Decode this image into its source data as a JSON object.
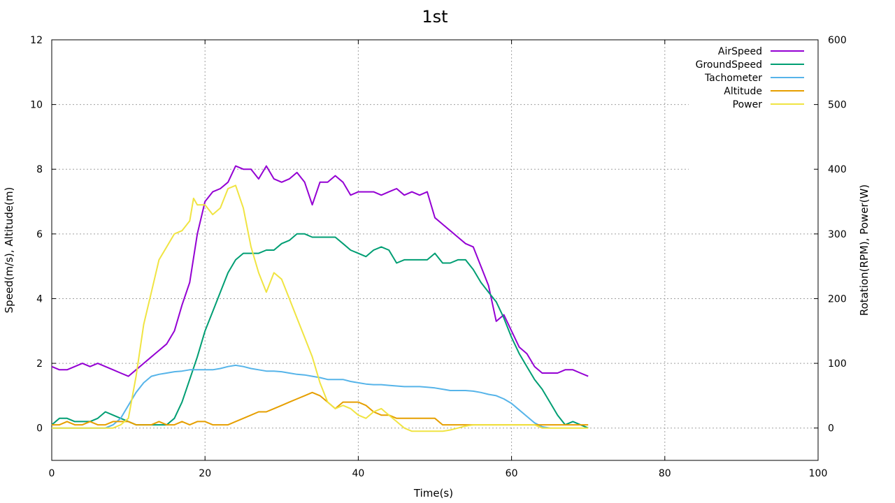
{
  "chart_data": {
    "type": "line",
    "title": "1st",
    "xlabel": "Time(s)",
    "ylabel": "Speed(m/s), Altitude(m)",
    "y2label": "Rotation(RPM), Power(W)",
    "xlim": [
      0,
      100
    ],
    "ylim": [
      -1,
      12
    ],
    "y2lim": [
      -50,
      600
    ],
    "xticks": [
      0,
      20,
      40,
      60,
      80,
      100
    ],
    "yticks": [
      0,
      2,
      4,
      6,
      8,
      10,
      12
    ],
    "y2ticks": [
      0,
      100,
      200,
      300,
      400,
      500,
      600
    ],
    "grid": true,
    "legend_position": "top-right",
    "series": [
      {
        "name": "AirSpeed",
        "axis": "y1",
        "color": "#9400d3",
        "x": [
          0,
          1,
          2,
          3,
          4,
          5,
          6,
          7,
          8,
          9,
          10,
          11,
          12,
          13,
          14,
          15,
          16,
          17,
          18,
          19,
          20,
          21,
          22,
          23,
          24,
          25,
          26,
          27,
          28,
          29,
          30,
          31,
          32,
          33,
          34,
          35,
          36,
          37,
          38,
          39,
          40,
          41,
          42,
          43,
          44,
          45,
          46,
          47,
          48,
          49,
          50,
          51,
          52,
          53,
          54,
          55,
          56,
          57,
          58,
          59,
          60,
          61,
          62,
          63,
          64,
          65,
          66,
          67,
          68,
          69,
          70
        ],
        "values": [
          1.9,
          1.8,
          1.8,
          1.9,
          2.0,
          1.9,
          2.0,
          1.9,
          1.8,
          1.7,
          1.6,
          1.8,
          2.0,
          2.2,
          2.4,
          2.6,
          3.0,
          3.8,
          4.5,
          6.0,
          7.0,
          7.3,
          7.4,
          7.6,
          8.1,
          8.0,
          8.0,
          7.7,
          8.1,
          7.7,
          7.6,
          7.7,
          7.9,
          7.6,
          6.9,
          7.6,
          7.6,
          7.8,
          7.6,
          7.2,
          7.3,
          7.3,
          7.3,
          7.2,
          7.3,
          7.4,
          7.2,
          7.3,
          7.2,
          7.3,
          6.5,
          6.3,
          6.1,
          5.9,
          5.7,
          5.6,
          5.0,
          4.4,
          3.3,
          3.5,
          3.0,
          2.5,
          2.3,
          1.9,
          1.7,
          1.7,
          1.7,
          1.8,
          1.8,
          1.7,
          1.6
        ]
      },
      {
        "name": "GroundSpeed",
        "axis": "y1",
        "color": "#009e73",
        "x": [
          0,
          1,
          2,
          3,
          4,
          5,
          6,
          7,
          8,
          9,
          10,
          11,
          12,
          13,
          14,
          15,
          16,
          17,
          18,
          19,
          20,
          21,
          22,
          23,
          24,
          25,
          26,
          27,
          28,
          29,
          30,
          31,
          32,
          33,
          34,
          35,
          36,
          37,
          38,
          39,
          40,
          41,
          42,
          43,
          44,
          45,
          46,
          47,
          48,
          49,
          50,
          51,
          52,
          53,
          54,
          55,
          56,
          57,
          58,
          59,
          60,
          61,
          62,
          63,
          64,
          65,
          66,
          67,
          68,
          69,
          70
        ],
        "values": [
          0.1,
          0.3,
          0.3,
          0.2,
          0.2,
          0.2,
          0.3,
          0.5,
          0.4,
          0.3,
          0.2,
          0.1,
          0.1,
          0.1,
          0.1,
          0.1,
          0.3,
          0.8,
          1.5,
          2.2,
          3.0,
          3.6,
          4.2,
          4.8,
          5.2,
          5.4,
          5.4,
          5.4,
          5.5,
          5.5,
          5.7,
          5.8,
          6.0,
          6.0,
          5.9,
          5.9,
          5.9,
          5.9,
          5.7,
          5.5,
          5.4,
          5.3,
          5.5,
          5.6,
          5.5,
          5.1,
          5.2,
          5.2,
          5.2,
          5.2,
          5.4,
          5.1,
          5.1,
          5.2,
          5.2,
          4.9,
          4.5,
          4.2,
          3.9,
          3.4,
          2.8,
          2.3,
          1.9,
          1.5,
          1.2,
          0.8,
          0.4,
          0.1,
          0.2,
          0.1,
          0.0
        ]
      },
      {
        "name": "Tachometer",
        "axis": "y2",
        "color": "#56b4e9",
        "x": [
          0,
          7,
          8,
          9,
          10,
          11,
          12,
          13,
          14,
          15,
          16,
          17,
          18,
          19,
          20,
          21,
          22,
          23,
          24,
          25,
          26,
          27,
          28,
          29,
          30,
          31,
          32,
          33,
          34,
          35,
          36,
          37,
          38,
          39,
          40,
          41,
          42,
          43,
          44,
          45,
          46,
          47,
          48,
          49,
          50,
          51,
          52,
          53,
          54,
          55,
          56,
          57,
          58,
          59,
          60,
          61,
          62,
          63,
          64,
          65
        ],
        "values": [
          0,
          0,
          5,
          15,
          35,
          55,
          70,
          80,
          83,
          85,
          87,
          88,
          90,
          90,
          90,
          90,
          92,
          95,
          97,
          95,
          92,
          90,
          88,
          88,
          87,
          85,
          83,
          82,
          80,
          78,
          75,
          75,
          75,
          72,
          70,
          68,
          67,
          67,
          66,
          65,
          64,
          64,
          64,
          63,
          62,
          60,
          58,
          58,
          58,
          57,
          55,
          52,
          50,
          45,
          38,
          28,
          18,
          8,
          2,
          0
        ]
      },
      {
        "name": "Altitude",
        "axis": "y1",
        "color": "#e69f00",
        "x": [
          0,
          1,
          2,
          3,
          4,
          5,
          6,
          7,
          8,
          9,
          10,
          11,
          12,
          13,
          14,
          15,
          16,
          17,
          18,
          19,
          20,
          21,
          22,
          23,
          24,
          25,
          26,
          27,
          28,
          29,
          30,
          31,
          32,
          33,
          34,
          35,
          36,
          37,
          38,
          39,
          40,
          41,
          42,
          43,
          44,
          45,
          46,
          47,
          48,
          49,
          50,
          51,
          52,
          53,
          54,
          55,
          56,
          57,
          58,
          59,
          60,
          61,
          62,
          63,
          64,
          65,
          66,
          67,
          68,
          69,
          70
        ],
        "values": [
          0.1,
          0.1,
          0.2,
          0.1,
          0.1,
          0.2,
          0.1,
          0.1,
          0.2,
          0.2,
          0.2,
          0.1,
          0.1,
          0.1,
          0.2,
          0.1,
          0.1,
          0.2,
          0.1,
          0.2,
          0.2,
          0.1,
          0.1,
          0.1,
          0.2,
          0.3,
          0.4,
          0.5,
          0.5,
          0.6,
          0.7,
          0.8,
          0.9,
          1.0,
          1.1,
          1.0,
          0.8,
          0.6,
          0.8,
          0.8,
          0.8,
          0.7,
          0.5,
          0.4,
          0.4,
          0.3,
          0.3,
          0.3,
          0.3,
          0.3,
          0.3,
          0.1,
          0.1,
          0.1,
          0.1,
          0.1,
          0.1,
          0.1,
          0.1,
          0.1,
          0.1,
          0.1,
          0.1,
          0.1,
          0.1,
          0.1,
          0.1,
          0.1,
          0.1,
          0.1,
          0.1
        ]
      },
      {
        "name": "Power",
        "axis": "y2",
        "color": "#f0e442",
        "x": [
          0,
          5,
          8,
          9,
          10,
          11,
          12,
          13,
          14,
          15,
          16,
          17,
          18,
          18.5,
          19,
          20,
          21,
          22,
          23,
          24,
          25,
          26,
          27,
          28,
          29,
          30,
          31,
          32,
          33,
          34,
          35,
          36,
          37,
          38,
          39,
          40,
          41,
          42,
          43,
          44,
          45,
          46,
          47,
          48,
          49,
          50,
          51,
          52,
          53,
          54,
          55,
          56,
          57,
          58,
          59,
          60,
          61,
          62,
          63,
          64,
          65,
          66,
          67,
          68,
          69,
          70
        ],
        "values": [
          0,
          0,
          0,
          5,
          15,
          80,
          160,
          210,
          260,
          280,
          300,
          305,
          320,
          355,
          345,
          345,
          330,
          340,
          370,
          375,
          340,
          280,
          240,
          210,
          240,
          230,
          200,
          170,
          140,
          110,
          70,
          40,
          30,
          35,
          30,
          20,
          15,
          25,
          30,
          20,
          10,
          0,
          -5,
          -5,
          -5,
          -5,
          -5,
          -3,
          0,
          3,
          5,
          5,
          5,
          5,
          5,
          5,
          5,
          5,
          5,
          0,
          0,
          0,
          0,
          0,
          0,
          0
        ]
      }
    ]
  }
}
